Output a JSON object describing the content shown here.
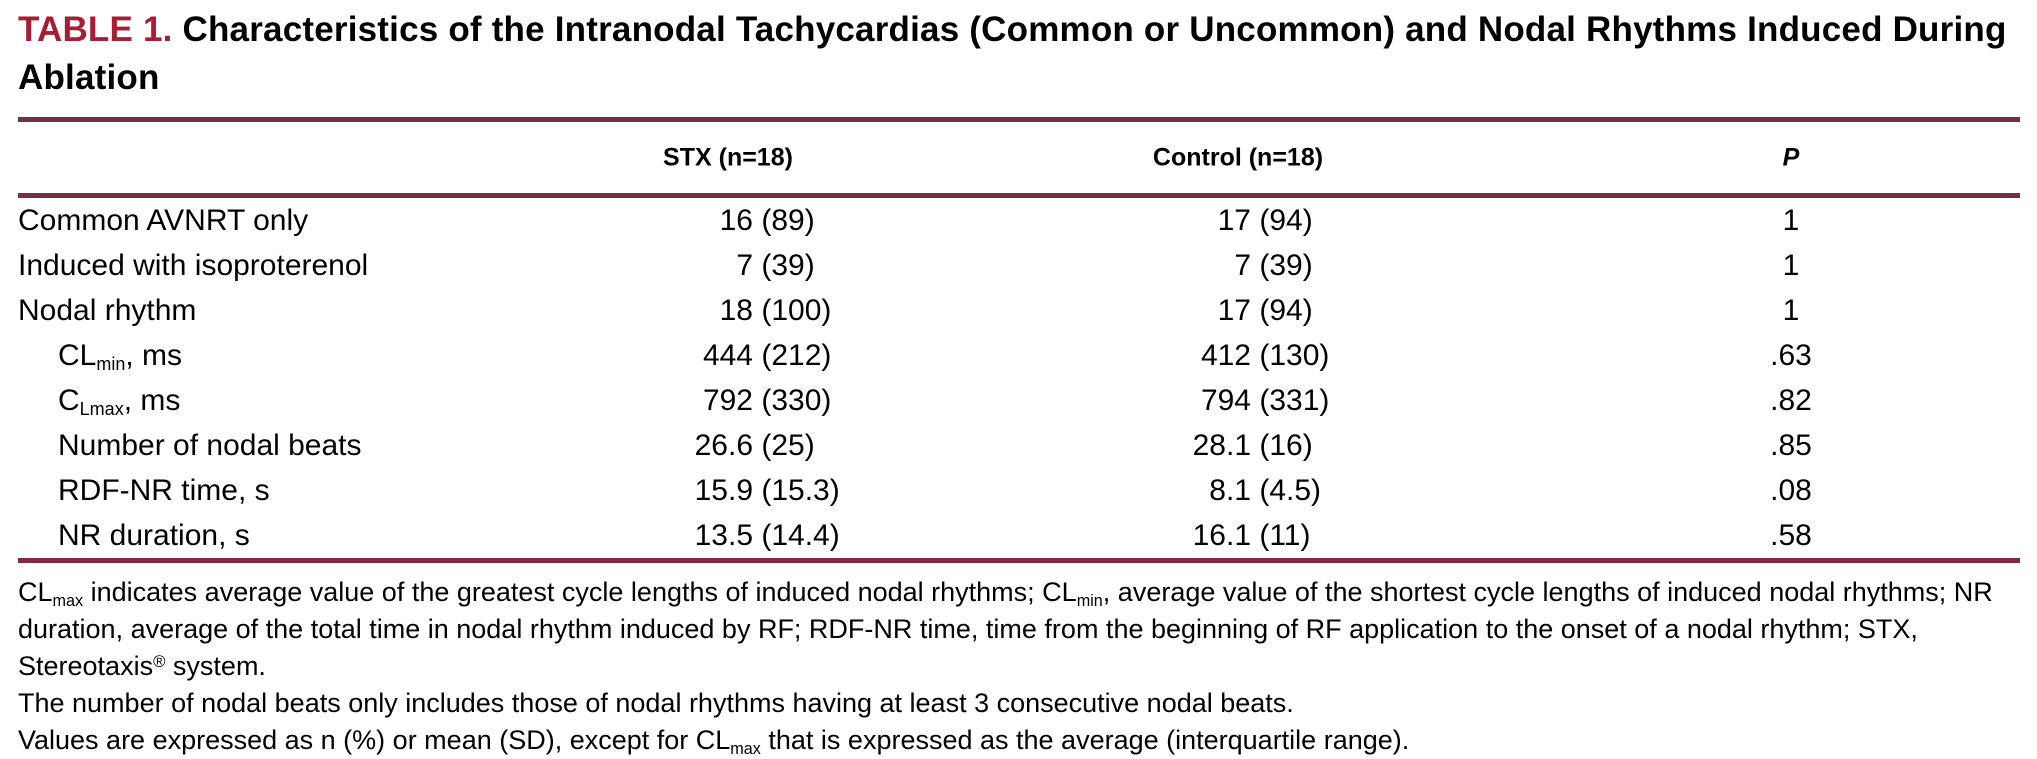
{
  "title": {
    "label": "TABLE 1.",
    "text": " Characteristics of the Intranodal Tachycardias (Common or Uncommon) and Nodal Rhythms Induced During Ablation"
  },
  "columns": {
    "stx": "STX (n=18)",
    "control": "Control (n=18)",
    "p": "P"
  },
  "rows": [
    {
      "indent": false,
      "label": [
        {
          "t": "Common AVNRT only"
        }
      ],
      "stx": "16 (89)",
      "control": "17 (94)",
      "p": "1"
    },
    {
      "indent": false,
      "label": [
        {
          "t": "Induced with isoproterenol"
        }
      ],
      "stx": "7 (39)",
      "control": "7 (39)",
      "p": "1"
    },
    {
      "indent": false,
      "label": [
        {
          "t": "Nodal rhythm"
        }
      ],
      "stx": "18 (100)",
      "control": "17 (94)",
      "p": "1"
    },
    {
      "indent": true,
      "label": [
        {
          "t": "CL"
        },
        {
          "sub": "min"
        },
        {
          "t": ", ms"
        }
      ],
      "stx": "444 (212)",
      "control": "412 (130)",
      "p": ".63"
    },
    {
      "indent": true,
      "label": [
        {
          "t": "C"
        },
        {
          "sub": "Lmax"
        },
        {
          "t": ", ms"
        }
      ],
      "stx": "792 (330)",
      "control": "794 (331)",
      "p": ".82"
    },
    {
      "indent": true,
      "label": [
        {
          "t": "Number of nodal beats"
        }
      ],
      "stx": "26.6 (25)",
      "control": "28.1 (16)",
      "p": ".85"
    },
    {
      "indent": true,
      "label": [
        {
          "t": "RDF-NR time, s"
        }
      ],
      "stx": "15.9 (15.3)",
      "control": "8.1 (4.5)",
      "p": ".08"
    },
    {
      "indent": true,
      "label": [
        {
          "t": "NR duration, s"
        }
      ],
      "stx": "13.5 (14.4)",
      "control": "16.1 (11)",
      "p": ".58"
    }
  ],
  "footnotes": [
    [
      {
        "t": "CL"
      },
      {
        "sub": "max"
      },
      {
        "t": " indicates average value of the greatest cycle lengths of induced nodal rhythms; CL"
      },
      {
        "sub": "min"
      },
      {
        "t": ", average value of the shortest cycle lengths of induced nodal rhythms; NR duration, average of the total time in nodal rhythm induced by RF; RDF-NR time, time from the beginning of RF application to the onset of a nodal rhythm; STX, Stereotaxis"
      },
      {
        "sup": "®"
      },
      {
        "t": " system."
      }
    ],
    [
      {
        "t": "The number of nodal beats only includes those of nodal rhythms having at least 3 consecutive nodal beats."
      }
    ],
    [
      {
        "t": "Values are expressed as n (%) or mean (SD), except for CL"
      },
      {
        "sub": "max"
      },
      {
        "t": " that is expressed as the average (interquartile range)."
      }
    ]
  ],
  "colors": {
    "accent_title": "#a71e34",
    "rule": "#7b2c3f",
    "text": "#000000",
    "background": "#ffffff"
  }
}
